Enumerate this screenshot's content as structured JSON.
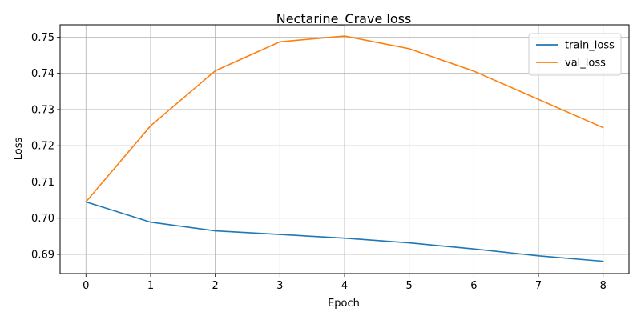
{
  "chart_data": {
    "type": "line",
    "title": "Nectarine_Crave loss",
    "xlabel": "Epoch",
    "ylabel": "Loss",
    "x": [
      0,
      1,
      2,
      3,
      4,
      5,
      6,
      7,
      8
    ],
    "xticks": [
      0,
      1,
      2,
      3,
      4,
      5,
      6,
      7,
      8
    ],
    "yticks": [
      0.69,
      0.7,
      0.71,
      0.72,
      0.73,
      0.74,
      0.75
    ],
    "ytick_labels": [
      "0.69",
      "0.70",
      "0.71",
      "0.72",
      "0.73",
      "0.74",
      "0.75"
    ],
    "xlim": [
      -0.4,
      8.4
    ],
    "ylim": [
      0.6847,
      0.7534
    ],
    "grid": true,
    "legend_position": "top-right",
    "series": [
      {
        "name": "train_loss",
        "color": "#1f77b4",
        "values": [
          0.7045,
          0.6989,
          0.6965,
          0.6955,
          0.6945,
          0.6932,
          0.6915,
          0.6896,
          0.6881
        ]
      },
      {
        "name": "val_loss",
        "color": "#ff7f0e",
        "values": [
          0.7045,
          0.7255,
          0.7407,
          0.7487,
          0.7503,
          0.7468,
          0.7406,
          0.7328,
          0.725
        ]
      }
    ]
  }
}
